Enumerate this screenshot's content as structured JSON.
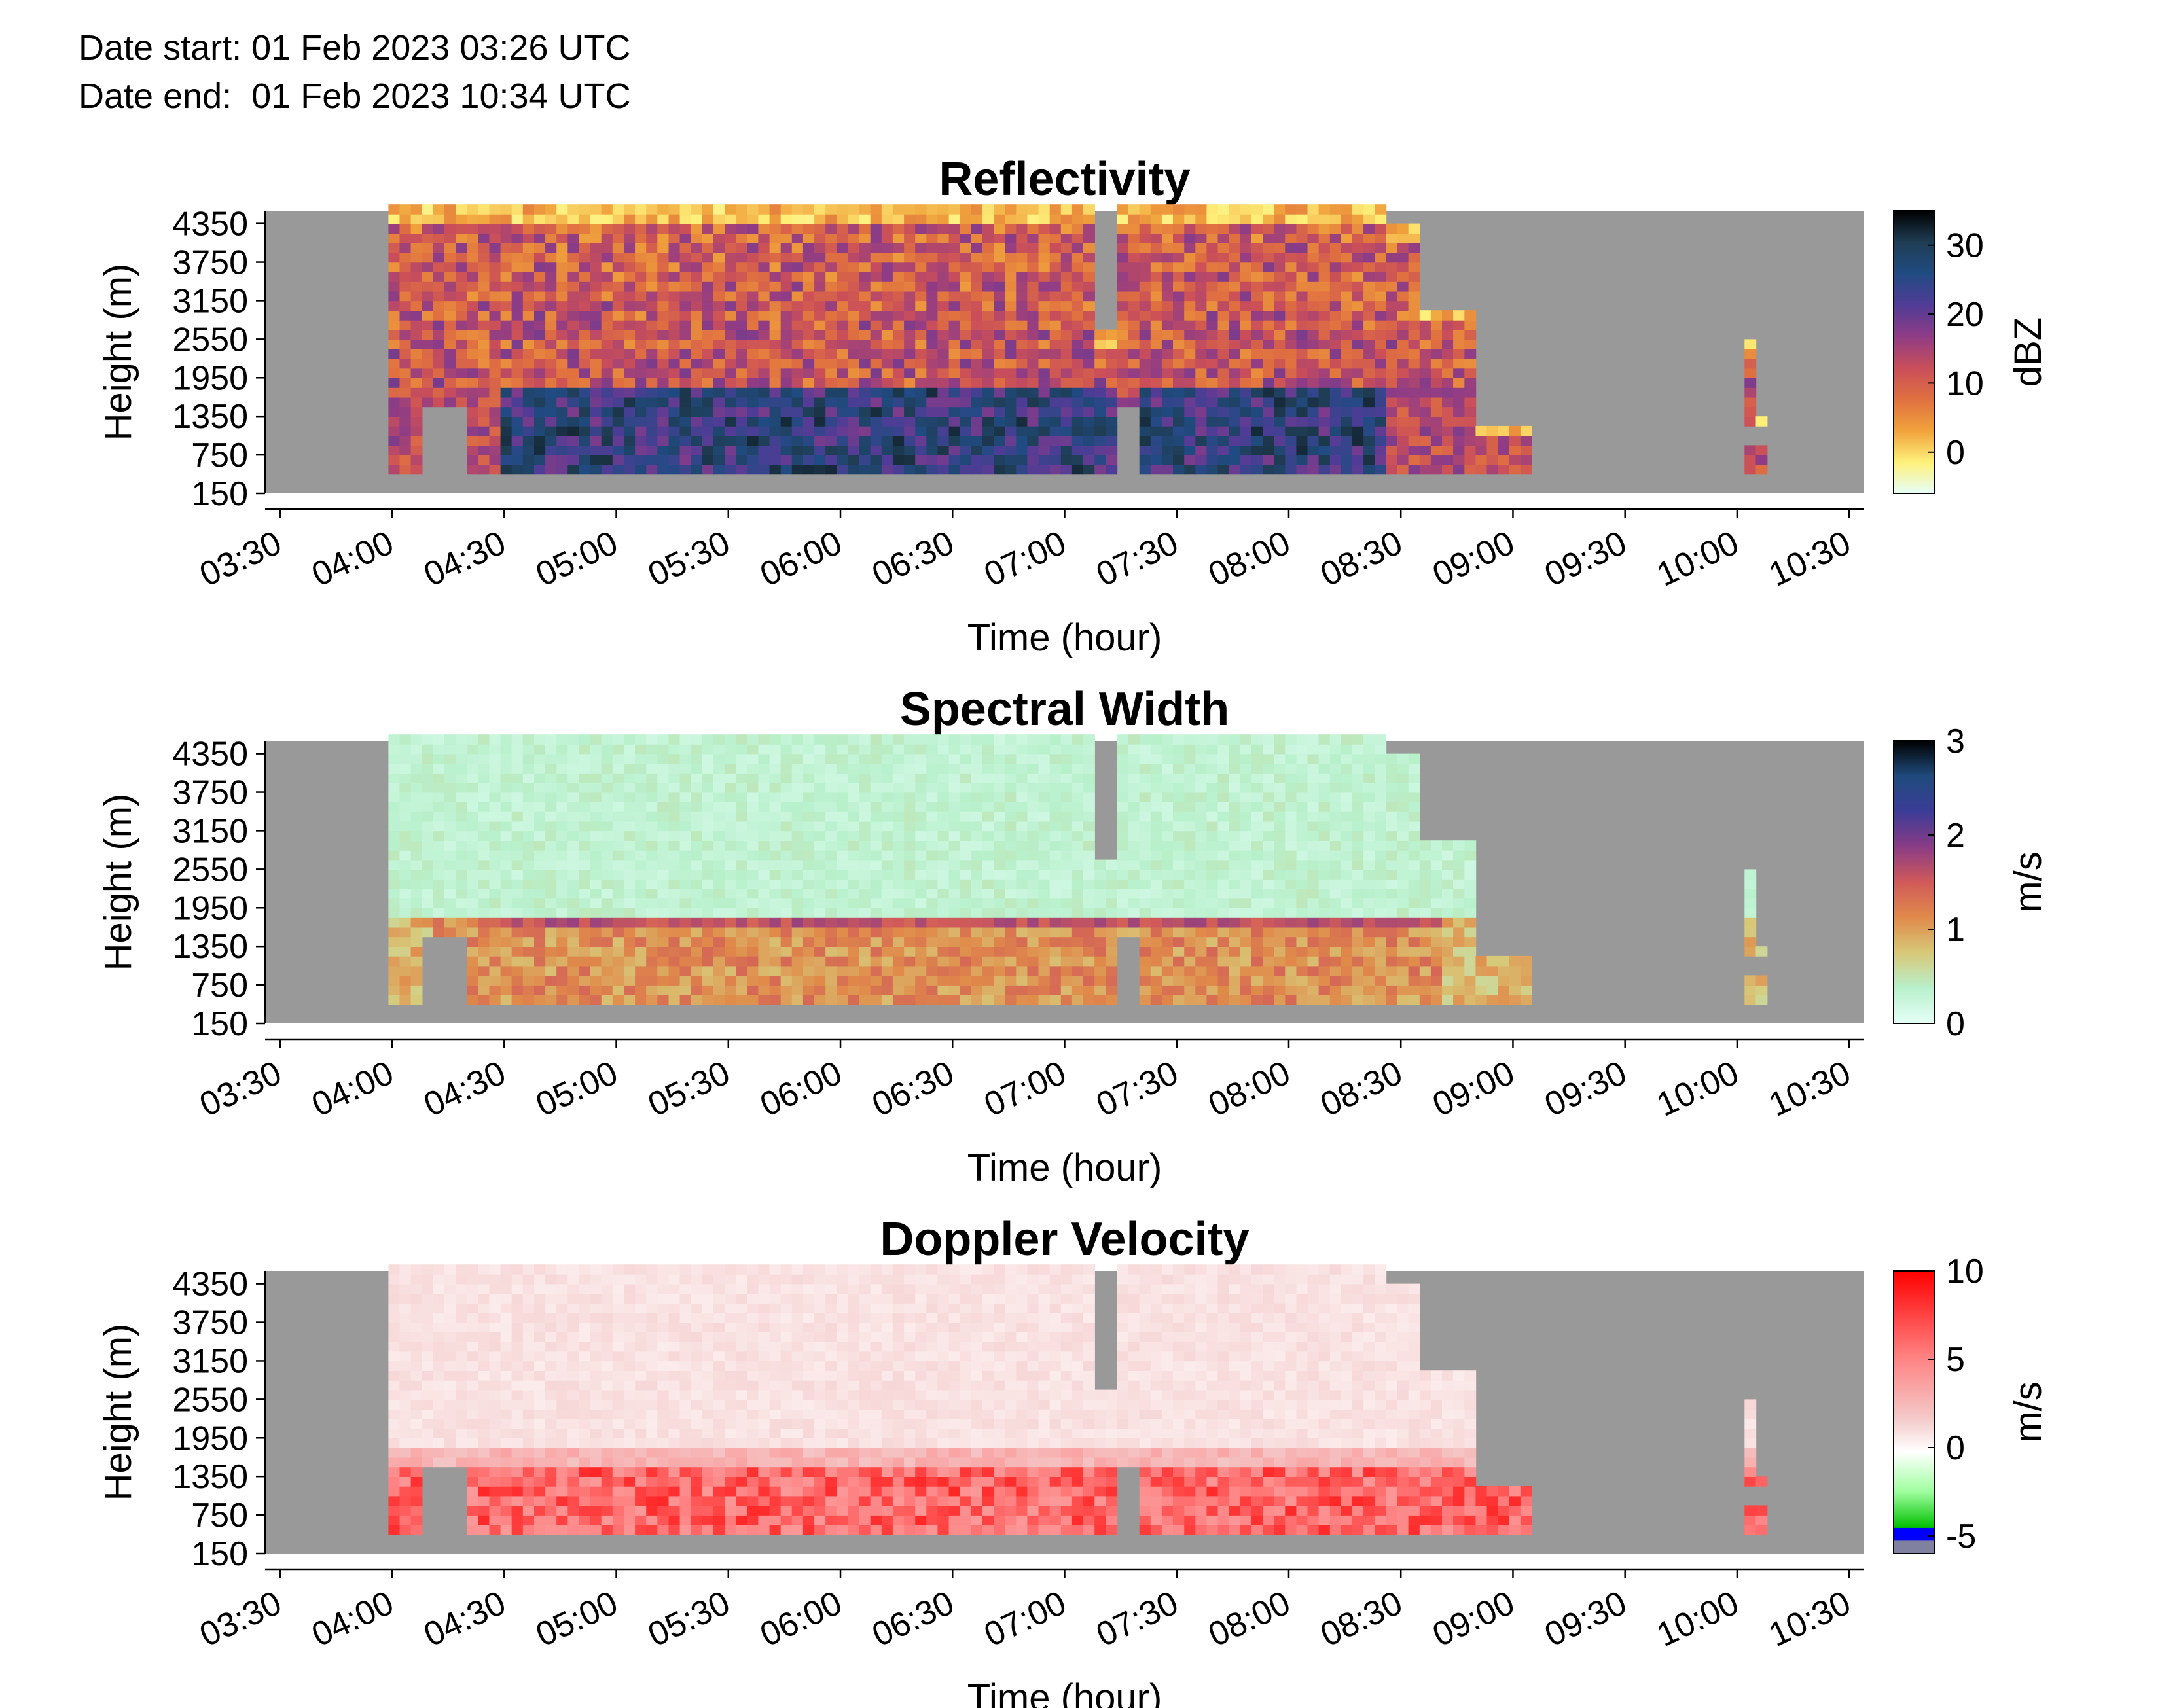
{
  "header": {
    "date_start": "Date start: 01 Feb 2023 03:26 UTC",
    "date_end": "Date end:  01 Feb 2023 10:34 UTC"
  },
  "colors": {
    "background_nodata": "#999999",
    "reflectivity_colormap": [
      "#e6fff8",
      "#fff07a",
      "#f0a23c",
      "#e07040",
      "#c94e5a",
      "#8f3c86",
      "#503c96",
      "#204b82",
      "#1f3d54",
      "#000000"
    ],
    "spectral_width_colormap": [
      "#e6fff8",
      "#b8f0cc",
      "#d8c878",
      "#e08a4a",
      "#d05a5a",
      "#8a3c86",
      "#3c3c96",
      "#1f4b7c",
      "#000000"
    ],
    "doppler_colormap": [
      "#8080a0",
      "#0000ff",
      "#00c000",
      "#a0ffa0",
      "#ffffff",
      "#f4c8c8",
      "#ff8080",
      "#ff0000"
    ]
  },
  "chart_data": [
    {
      "type": "heatmap",
      "title": "Reflectivity",
      "xlabel": "Time (hour)",
      "ylabel": "Height (m)",
      "x_ticks": [
        "03:30",
        "04:00",
        "04:30",
        "05:00",
        "05:30",
        "06:00",
        "06:30",
        "07:00",
        "07:30",
        "08:00",
        "08:30",
        "09:00",
        "09:30",
        "10:00",
        "10:30"
      ],
      "y_ticks": [
        "150",
        "750",
        "1350",
        "1950",
        "2550",
        "3150",
        "3750",
        "4350"
      ],
      "xlim": [
        "03:26",
        "10:34"
      ],
      "ylim": [
        150,
        4550
      ],
      "colorbar": {
        "label": "dBZ",
        "ticks": [
          "0",
          "10",
          "20",
          "30"
        ],
        "range": [
          -6,
          35
        ]
      }
    },
    {
      "type": "heatmap",
      "title": "Spectral Width",
      "xlabel": "Time (hour)",
      "ylabel": "Height (m)",
      "x_ticks": [
        "03:30",
        "04:00",
        "04:30",
        "05:00",
        "05:30",
        "06:00",
        "06:30",
        "07:00",
        "07:30",
        "08:00",
        "08:30",
        "09:00",
        "09:30",
        "10:00",
        "10:30"
      ],
      "y_ticks": [
        "150",
        "750",
        "1350",
        "1950",
        "2550",
        "3150",
        "3750",
        "4350"
      ],
      "xlim": [
        "03:26",
        "10:34"
      ],
      "ylim": [
        150,
        4550
      ],
      "colorbar": {
        "label": "m/s",
        "ticks": [
          "0",
          "1",
          "2",
          "3"
        ],
        "range": [
          0,
          3
        ]
      }
    },
    {
      "type": "heatmap",
      "title": "Doppler Velocity",
      "xlabel": "Time (hour)",
      "ylabel": "Height (m)",
      "x_ticks": [
        "03:30",
        "04:00",
        "04:30",
        "05:00",
        "05:30",
        "06:00",
        "06:30",
        "07:00",
        "07:30",
        "08:00",
        "08:30",
        "09:00",
        "09:30",
        "10:00",
        "10:30"
      ],
      "y_ticks": [
        "150",
        "750",
        "1350",
        "1950",
        "2550",
        "3150",
        "3750",
        "4350"
      ],
      "xlim": [
        "03:26",
        "10:34"
      ],
      "ylim": [
        150,
        4550
      ],
      "colorbar": {
        "label": "m/s",
        "ticks": [
          "-5",
          "0",
          "5",
          "10"
        ],
        "range": [
          -6,
          10
        ]
      }
    }
  ]
}
